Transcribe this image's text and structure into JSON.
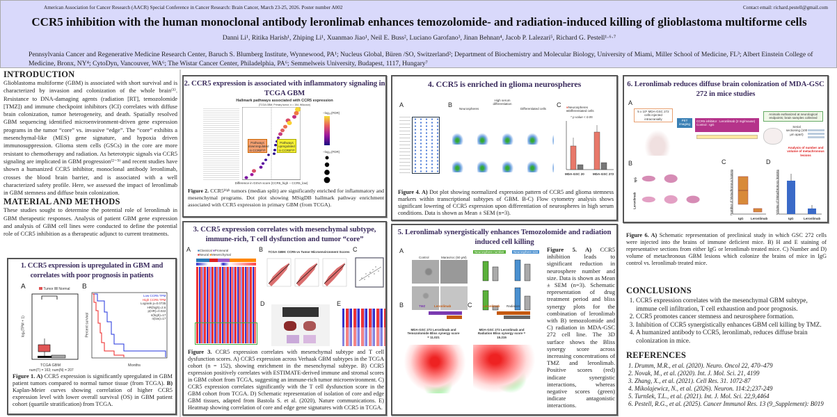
{
  "header": {
    "conference": "American Association for Cancer Research (AACR) Special Conference in Cancer Research: Brain Cancer, March 23-25, 2026. Poster number A002",
    "contact": "Contact email: richard.pestell@gmail.com",
    "title": "CCR5 inhibition with the human monoclonal antibody leronlimab enhances temozolomide- and radiation-induced killing of glioblastoma multiforme cells",
    "authors": "Danni Li¹, Ritika Harish¹, Zhiping Li¹, Xuanmao Jiao¹, Neil E. Buss², Luciano Garofano³, Jinan Behnan⁴, Jacob P. Lalezari⁵, Richard G. Pestell¹·⁶·⁷",
    "affiliations": "Pennsylvania Cancer and Regenerative Medicine Research Center, Baruch S. Blumberg Institute, Wynnewood, PA¹; Nucleus Global, Büren /SO, Switzerland²; Department of Biochemistry and Molecular Biology, University of Miami, Miller School of Medicine, FL³;  Albert Einstein College of Medicine, Bronx, NY⁴;  CytoDyn, Vancouver, WA⁶; The Wistar Cancer Center, Philadelphia, PA⁶; Semmelweis University, Budapest, 1117, Hungary⁷"
  },
  "intro": {
    "heading": "INTRODUCTION",
    "text": "Glioblastoma multiforme (GBM) is associated with short survival and is characterized by invasion and colonization of the whole brain⁽¹⁾. Resistance to DNA-damaging agents (radiation [RT], temozolomide [TMZ]) and immune checkpoint inhibitors (ICI) correlates with diffuse brain colonization, tumor heterogeneity, and death. Spatially resolved GBM sequencing identified microenvironment-driven gene expression programs in the tumor “core” vs. invasive “edge”. The “core” exhibits a mesenchymal-like (MES) gene signature, and hypoxia driven immunosuppression. Glioma stem cells (GSCs) in the core are more resistant to chemotherapy and radiation. As heterotypic signals via CCR5 signaling are implicated in GBM progression⁽²⁻⁵⁾ and recent studies have shown a humanized CCR5 inhibitor, monoclonal antibody leronlimab, crosses the blood brain barrier, and is associated with a well characterized safety profile. Here, we assessed the impact of leronlimab in GBM stemness and diffuse brain colonization."
  },
  "methods": {
    "heading": "MATERIAL AND METHODS",
    "text": "These studies sought to determine the potential role of leronlimab in GBM therapeutic responses. Analysis of patient GBM gene expression and analysis of GBM cell lines were conducted to define the potential role of CCR5 inhibition as a therapeutic adjunct to current treatments."
  },
  "fig1": {
    "title": "1. CCR5 expression is upregulated in GBM and correlates with poor prognosis in patients",
    "a": "A",
    "b": "B",
    "tumor": "Tumor",
    "normal": "Normal",
    "ylabel": "log₂(TPM + 1)",
    "xlabel": "TCGA GBM",
    "counts": "num(T) = 163; num(N) = 207",
    "km_low": "Low CCR5 TPM",
    "km_high": "High CCR5 TPM",
    "km_stats": [
      "Logrank p=0.0735",
      "HR(high)=2.6",
      "p(HR)=0.022",
      "n(high)=17",
      "n(low)=17"
    ],
    "km_ylabel": "Percent survival",
    "km_xlabel": "Months",
    "caption_label": "Figure 1. A)",
    "caption1": " CCR5 expression is significantly upregulated in GBM patient tumors compared to normal tumor tissue (from TCGA).",
    "caption_b": " B)",
    "caption2": " Kaplan-Meier curves showing correlation of higher CCR5 expression level with lower overall survival (OS) in GBM patient cohort (quartile stratification) from TCGA."
  },
  "fig2": {
    "title": "2. CCR5 expression is associated with inflammatory signaling in TCGA GBM",
    "chart_title": "Hallmark pathways associated with CCR5 expression",
    "chart_sub": "(TCGA GBM; Primary tumor; n = 154; Wilcoxon)",
    "down": "Pathways downregulated in CCR5ʰⁱᵍʰ",
    "up": "Pathways upregulated in CCR5ʰⁱᵍʰ",
    "xlabel": "Difference in GSVA score (CCR5_high − CCR5_low)",
    "legend_color": "−log₁₀(FDR)",
    "legend_size": "−log₁₀(FDR)",
    "caption_label": "Figure 2.",
    "caption": " CCR5ʰⁱᵍʰ tumors (median split) are significantly enriched for inflammatory and mesenchymal programs. Dot plot showing MSigDB hallmark pathway enrichment associated with CCR5 expression in primary GBM (from TCGA)."
  },
  "fig3": {
    "title": "3. CCR5 expression correlates with mesenchymal subtype, immune-rich, T cell dysfunction and tumor “core”",
    "a": "A",
    "b": "B",
    "c": "C",
    "d": "D",
    "e": "E",
    "classical": "Classical",
    "proneural": "Proneural",
    "neural": "Neural",
    "mesenchymal": "Mesenchymal",
    "b_title": "TCGA GBM: CCR5 vs Tumor Microenvironment Scores",
    "caption_label": "Figure 3.",
    "caption": " CCR5 expression correlates with mesenchymal subtype and T cell dysfunction scores. A) CCR5 expression across Verhaak GBM subtypes in the TCGA cohort (n = 152), showing enrichment in the mesenchymal subtype. B) CCR5 expression positively correlates with ESTIMATE-derived immune and stromal scores in GBM cohort from TCGA, suggesting an immune-rich tumor microenvironment. C) CCR5 expression correlates significantly with the T cell dysfunction score in the GBM cohort from TCGA. D) Schematic representation of isolation of core and edge GBM tissues, adapted from Bastola S. et al. (2020), Nature communications. E) Heatmap showing correlation of core and edge gene signatures with CCR5 in TCGA."
  },
  "fig4": {
    "title": "4. CCR5 is enriched in glioma neurospheres",
    "a": "A",
    "b": "B",
    "c": "C",
    "neuro": "Neurospheres",
    "diff": "Differentiated cells",
    "serum": "High serum differentiation",
    "pval": "* p-value < 0.05",
    "ylabel": "CCR5 expression (%)",
    "lines": [
      "MDA-GSC 20",
      "MDA-GSC 272"
    ],
    "caption_label": "Figure 4. A)",
    "caption": " Dot plot showing normalized expression pattern of CCR5 and glioma stemness markers within transcriptional subtypes of GBM. B-C) Flow cytometry analysis shows significant lowering of CCR5 expression upon differentiation of neurospheres in high serum conditions. Data is shown as Mean ± SEM (n=3).",
    "colors": {
      "neurospheres": "#e8786a",
      "differentiated": "#777777"
    }
  },
  "fig5": {
    "title": "5. Leronlimab synergistically enhances Temozolomide and radiation induced cell killing",
    "a": "A",
    "b": "B",
    "c": "C",
    "control": "Control",
    "maraviroc": "Maraviroc (50 μM)",
    "number": "Neurosphere number",
    "size": "Neurosphere size",
    "tmz": "TMZ",
    "leron": "Leronlimab",
    "radiation": "Radiation",
    "b_plot": "MDA-GSC 272 Leronlimab and Temozolomide Bliss synergy score = 11.021",
    "c_plot": "MDA-GSC 272 Leronlimab and Radiation Bliss synergy score = 15.215",
    "caption_label": "Figure 5. A)",
    "caption": " CCR5 inhibition leads to significant reduction in neurosphere number and size. Data is shown as Mean ± SEM (n=3). Schematic representation of drug treatment period and bliss synergy plots for the combination of leronlimab with B) temozolomide and C) radiation in MDA-GSC 272 cell line. The 3D surface shows the Bliss synergy score across increasing concentrations of TMZ and leronlimab. Positive scores (red) indicate synergistic interactions, whereas negative scores (green) indicate antagonistic interactions."
  },
  "fig6": {
    "title": "6. Leronlimab reduces diffuse brain colonization of MDA-GSC 272 in mice studies",
    "a": "A",
    "b": "B",
    "c": "C",
    "d": "D",
    "inject": "5 x 10⁵ MDA-GSC 272 cells injected intracranially",
    "pet": "PET imaging",
    "inhibitor": "CCR5 inhibitor : Leronlimab (2 mg/mouse) Control : IgG",
    "euth": "Animals euthanized at neurological endpoints; brain samples collected",
    "section": "Serial sectioning (100 μm apart)",
    "analysis": "Analysis of number and volume of metachronous lesions",
    "igg": "IgG",
    "leron": "Leronlimab",
    "c_ylabel": "Number of Metachronous lesions",
    "d_ylabel": "Volume of Metachronous lesions",
    "caption_label": "Figure 6. A)",
    "caption": " Schematic representation of preclinical study in which GSC 272 cells were injected into the brains of immune deficient mice. B) H and E staining of representative sections from either IgG or leronlimab treated mice. C) Number and D) volume of metachronous GBM  lesions which colonize the brains of mice in IgG control vs. leronlimab treated mice."
  },
  "conclusions": {
    "heading": "CONCLUSIONS",
    "items": [
      "CCR5 expression correlates with the mesenchymal GBM subtype, immune cell infiltration, T cell exhaustion and poor prognosis.",
      "CCR5 promotes cancer stemness and neurosphere formation.",
      "Inhibition of CCR5 synergistically enhances GBM cell killing by TMZ.",
      "A humanized antibody to CCR5, leronlimab, reduces diffuse brain colonization in mice."
    ]
  },
  "references": {
    "heading": "REFERENCES",
    "items": [
      "Drumm, M.R., et al. (2020). Neuro. Oncol 22, 470–479",
      "Novak, M., et al. (2020). Int. J. Mol. Sci. 21, 4199",
      "Zhang, X., et al. (2021). Cell Res. 31. 1072-87",
      "Mikolajewicz, N., et al. (2026). Neuron. 114:2;237-249",
      "Turnšek, T.L., et al. (2021). Int. J. Mol. Sci. 22,9,4464",
      "Pestell, R.G., et al. (2025). Cancer Immunol Res. 13 (9_Supplement): B019"
    ]
  },
  "colors": {
    "header_bg": "#d9d9fb",
    "panel_title": "#3c2d5e",
    "tumor": "#e05555",
    "normal": "#aaaaaa",
    "km_low": "#2233dd",
    "km_high": "#ee2222"
  }
}
